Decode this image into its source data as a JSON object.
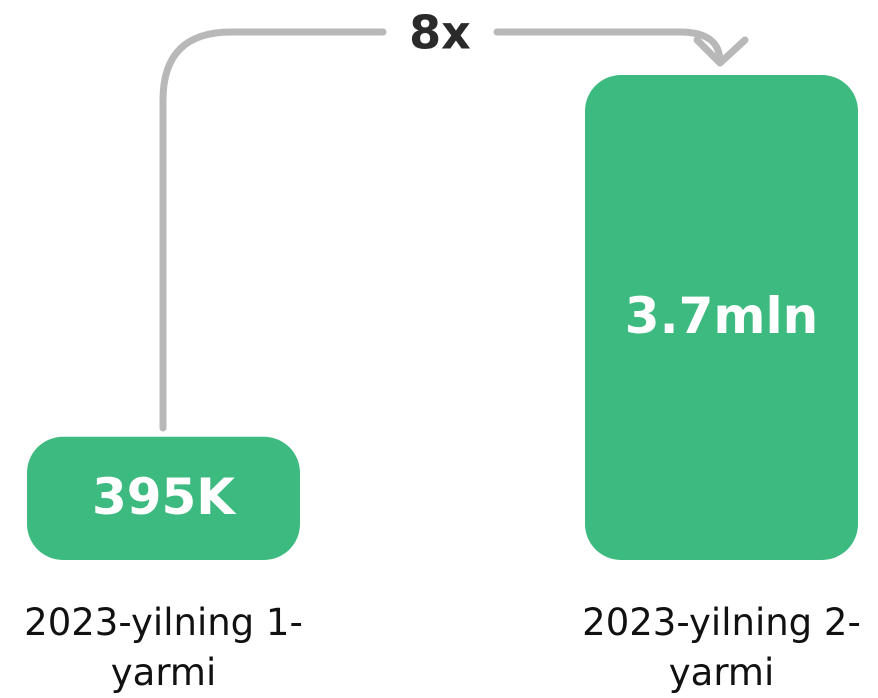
{
  "chart_data": {
    "type": "bar",
    "annotation": "8x",
    "categories": [
      "2023-yilning 1-yarmi",
      "2023-yilning 2-yarmi"
    ],
    "values": [
      395000,
      3700000
    ],
    "value_labels": [
      "395K",
      "3.7mln"
    ],
    "color": "#3dba7f"
  }
}
